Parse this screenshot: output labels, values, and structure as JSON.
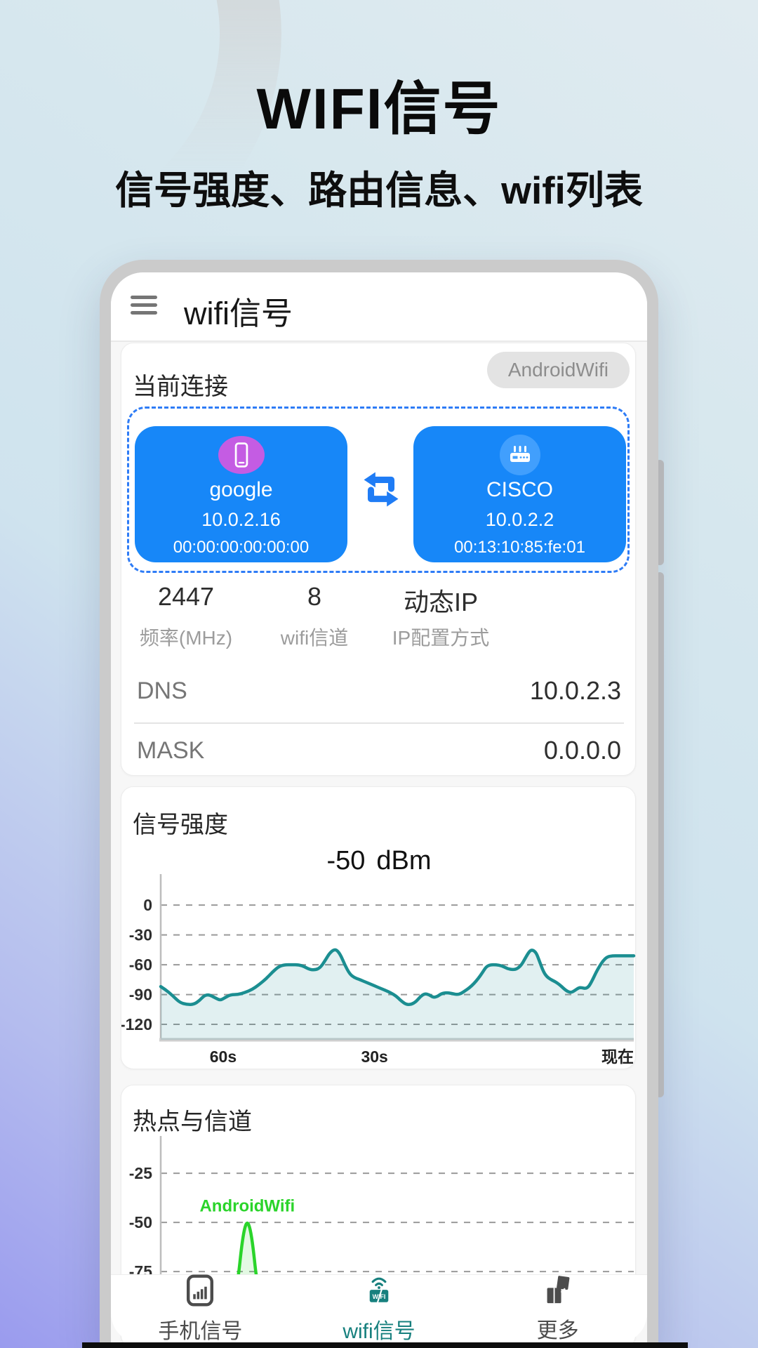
{
  "hero": {
    "title": "WIFI信号",
    "subtitle": "信号强度、路由信息、wifi列表"
  },
  "appbar": {
    "menu_icon": "hamburger-menu-icon",
    "title": "wifi信号"
  },
  "connection_card": {
    "title": "当前连接",
    "ssid_chip": "AndroidWifi",
    "device": {
      "icon": "smartphone-icon",
      "name": "google",
      "ip": "10.0.2.16",
      "mac": "00:00:00:00:00:00"
    },
    "link_icon": "swap-arrows-icon",
    "router": {
      "icon": "router-icon",
      "name": "CISCO",
      "ip": "10.0.2.2",
      "mac": "00:13:10:85:fe:01"
    },
    "stats": [
      {
        "value": "2447",
        "label": "频率(MHz)"
      },
      {
        "value": "8",
        "label": "wifi信道"
      },
      {
        "value": "动态IP",
        "label": "IP配置方式"
      }
    ],
    "rows": [
      {
        "label": "DNS",
        "value": "10.0.2.3"
      },
      {
        "label": "MASK",
        "value": "0.0.0.0"
      }
    ]
  },
  "signal_card": {
    "title": "信号强度",
    "current_value": "-50",
    "current_unit": "dBm"
  },
  "hotspot_card": {
    "title": "热点与信道"
  },
  "navbar": {
    "items": [
      {
        "icon": "cell-signal-icon",
        "label": "手机信号",
        "active": false
      },
      {
        "icon": "wifi-signal-icon",
        "label": "wifi信号",
        "active": true
      },
      {
        "icon": "more-boxes-icon",
        "label": "更多",
        "active": false
      }
    ]
  },
  "colors": {
    "accent_blue": "#1787f8",
    "dashed_border": "#2e7cf6",
    "teal_accent": "#17807e",
    "signal_line": "#1b8e91",
    "hotspot_green": "#2ad42a",
    "device_icon_bg": "#c45ce3",
    "router_icon_bg": "#419ffd",
    "phone_frame": "#cbcbcb"
  },
  "chart_data": [
    {
      "type": "area",
      "title": "信号强度",
      "ylabel": "dBm",
      "current": "-50 dBm",
      "yticks": [
        0,
        -30,
        -60,
        -90,
        -120
      ],
      "ylim": [
        -135.5,
        34
      ],
      "grid": "dashed",
      "legend_position": "none",
      "xticks": [
        {
          "label": "60s",
          "f": 0.132
        },
        {
          "label": "30s",
          "f": 0.452
        },
        {
          "label": "现在",
          "f": 1
        }
      ],
      "line_color": "#1b8e91",
      "fill_color": "rgba(27,142,145,0.13)",
      "series": [
        {
          "name": "wifi-rssi-dbm",
          "points": [
            [
              0,
              -82
            ],
            [
              0.01,
              -85
            ],
            [
              0.025,
              -91
            ],
            [
              0.04,
              -98
            ],
            [
              0.055,
              -100
            ],
            [
              0.07,
              -100
            ],
            [
              0.082,
              -96
            ],
            [
              0.092,
              -91
            ],
            [
              0.102,
              -90
            ],
            [
              0.114,
              -93
            ],
            [
              0.126,
              -96
            ],
            [
              0.136,
              -93
            ],
            [
              0.148,
              -90
            ],
            [
              0.163,
              -90
            ],
            [
              0.178,
              -88
            ],
            [
              0.193,
              -85
            ],
            [
              0.208,
              -80
            ],
            [
              0.223,
              -74
            ],
            [
              0.237,
              -67
            ],
            [
              0.249,
              -62
            ],
            [
              0.261,
              -60
            ],
            [
              0.277,
              -60
            ],
            [
              0.292,
              -60
            ],
            [
              0.304,
              -62
            ],
            [
              0.316,
              -65
            ],
            [
              0.328,
              -65
            ],
            [
              0.337,
              -63
            ],
            [
              0.346,
              -57
            ],
            [
              0.356,
              -49
            ],
            [
              0.365,
              -45
            ],
            [
              0.372,
              -45
            ],
            [
              0.38,
              -50
            ],
            [
              0.389,
              -60
            ],
            [
              0.399,
              -69
            ],
            [
              0.409,
              -73
            ],
            [
              0.421,
              -75
            ],
            [
              0.436,
              -78
            ],
            [
              0.451,
              -81
            ],
            [
              0.466,
              -84
            ],
            [
              0.481,
              -87
            ],
            [
              0.493,
              -90
            ],
            [
              0.501,
              -93
            ],
            [
              0.51,
              -97
            ],
            [
              0.519,
              -100
            ],
            [
              0.53,
              -100
            ],
            [
              0.54,
              -97
            ],
            [
              0.549,
              -92
            ],
            [
              0.558,
              -89
            ],
            [
              0.567,
              -90
            ],
            [
              0.576,
              -93
            ],
            [
              0.585,
              -92
            ],
            [
              0.593,
              -89
            ],
            [
              0.605,
              -88
            ],
            [
              0.617,
              -89
            ],
            [
              0.626,
              -90
            ],
            [
              0.635,
              -89
            ],
            [
              0.644,
              -86
            ],
            [
              0.653,
              -83
            ],
            [
              0.662,
              -79
            ],
            [
              0.671,
              -74
            ],
            [
              0.68,
              -68
            ],
            [
              0.688,
              -62
            ],
            [
              0.697,
              -60
            ],
            [
              0.709,
              -60
            ],
            [
              0.721,
              -61
            ],
            [
              0.733,
              -64
            ],
            [
              0.745,
              -65
            ],
            [
              0.754,
              -64
            ],
            [
              0.763,
              -60
            ],
            [
              0.771,
              -53
            ],
            [
              0.78,
              -46
            ],
            [
              0.786,
              -45
            ],
            [
              0.794,
              -48
            ],
            [
              0.801,
              -57
            ],
            [
              0.809,
              -67
            ],
            [
              0.816,
              -72
            ],
            [
              0.825,
              -75
            ],
            [
              0.834,
              -77
            ],
            [
              0.843,
              -80
            ],
            [
              0.852,
              -84
            ],
            [
              0.86,
              -87
            ],
            [
              0.868,
              -88
            ],
            [
              0.875,
              -86
            ],
            [
              0.884,
              -83
            ],
            [
              0.89,
              -83
            ],
            [
              0.898,
              -84
            ],
            [
              0.905,
              -82
            ],
            [
              0.912,
              -76
            ],
            [
              0.92,
              -68
            ],
            [
              0.927,
              -62
            ],
            [
              0.935,
              -56
            ],
            [
              0.944,
              -52
            ],
            [
              0.955,
              -51
            ],
            [
              0.967,
              -51
            ],
            [
              0.982,
              -51
            ],
            [
              1,
              -51
            ]
          ]
        }
      ]
    },
    {
      "type": "area",
      "title": "热点与信道",
      "ylabel": "dBm",
      "yticks": [
        -25,
        -50,
        -75
      ],
      "ylim": [
        -104.6,
        -4.6
      ],
      "grid": "dashed",
      "legend_position": "none",
      "xticks": [],
      "line_color": "#2ad42a",
      "fill_color": "rgba(42,212,42,0.13)",
      "annotations": [
        {
          "f": 0.183,
          "v": -44.5,
          "text": "AndroidWifi"
        }
      ],
      "series": [
        {
          "name": "AndroidWifi",
          "points": [
            [
              0,
              -100
            ],
            [
              0.06,
              -100
            ],
            [
              0.11,
              -99.5
            ],
            [
              0.135,
              -98
            ],
            [
              0.147,
              -93
            ],
            [
              0.159,
              -84
            ],
            [
              0.165,
              -76
            ],
            [
              0.171,
              -62
            ],
            [
              0.177,
              -53
            ],
            [
              0.183,
              -49.5
            ],
            [
              0.189,
              -53
            ],
            [
              0.195,
              -62
            ],
            [
              0.201,
              -76
            ],
            [
              0.207,
              -84
            ],
            [
              0.219,
              -93
            ],
            [
              0.231,
              -98
            ],
            [
              0.26,
              -99.7
            ],
            [
              0.32,
              -100
            ],
            [
              1,
              -100
            ]
          ]
        }
      ]
    }
  ]
}
